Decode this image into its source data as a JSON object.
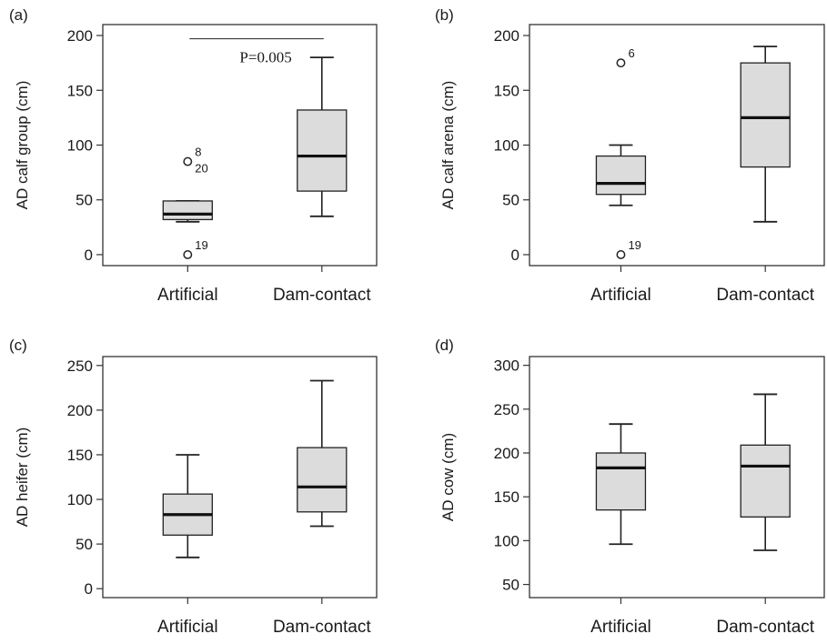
{
  "chart_data": [
    {
      "type": "box",
      "panel_label": "(a)",
      "ylabel": "AD calf group (cm)",
      "categories": [
        "Artificial",
        "Dam-contact"
      ],
      "ylim": [
        -10,
        210
      ],
      "yticks": [
        0,
        50,
        100,
        150,
        200
      ],
      "boxes": [
        {
          "category": "Artificial",
          "whisker_low": 30,
          "q1": 32,
          "median": 37,
          "q3": 49,
          "whisker_high": 49,
          "outliers": [
            {
              "value": 85,
              "labels": [
                "8",
                "20"
              ]
            },
            {
              "value": 0,
              "labels": [
                "19"
              ]
            }
          ]
        },
        {
          "category": "Dam-contact",
          "whisker_low": 35,
          "q1": 58,
          "median": 90,
          "q3": 132,
          "whisker_high": 180,
          "outliers": []
        }
      ],
      "annotation": {
        "text": "P=0.005",
        "y": 197
      }
    },
    {
      "type": "box",
      "panel_label": "(b)",
      "ylabel": "AD calf arena (cm)",
      "categories": [
        "Artificial",
        "Dam-contact"
      ],
      "ylim": [
        -10,
        210
      ],
      "yticks": [
        0,
        50,
        100,
        150,
        200
      ],
      "boxes": [
        {
          "category": "Artificial",
          "whisker_low": 45,
          "q1": 55,
          "median": 65,
          "q3": 90,
          "whisker_high": 100,
          "outliers": [
            {
              "value": 175,
              "labels": [
                "6"
              ]
            },
            {
              "value": 0,
              "labels": [
                "19"
              ]
            }
          ]
        },
        {
          "category": "Dam-contact",
          "whisker_low": 30,
          "q1": 80,
          "median": 125,
          "q3": 175,
          "whisker_high": 190,
          "outliers": []
        }
      ]
    },
    {
      "type": "box",
      "panel_label": "(c)",
      "ylabel": "AD heifer (cm)",
      "categories": [
        "Artificial",
        "Dam-contact"
      ],
      "ylim": [
        -10,
        260
      ],
      "yticks": [
        0,
        50,
        100,
        150,
        200,
        250
      ],
      "boxes": [
        {
          "category": "Artificial",
          "whisker_low": 35,
          "q1": 60,
          "median": 83,
          "q3": 106,
          "whisker_high": 150,
          "outliers": []
        },
        {
          "category": "Dam-contact",
          "whisker_low": 70,
          "q1": 86,
          "median": 114,
          "q3": 158,
          "whisker_high": 233,
          "outliers": []
        }
      ]
    },
    {
      "type": "box",
      "panel_label": "(d)",
      "ylabel": "AD cow (cm)",
      "categories": [
        "Artificial",
        "Dam-contact"
      ],
      "ylim": [
        35,
        310
      ],
      "yticks": [
        50,
        100,
        150,
        200,
        250,
        300
      ],
      "boxes": [
        {
          "category": "Artificial",
          "whisker_low": 96,
          "q1": 135,
          "median": 183,
          "q3": 200,
          "whisker_high": 233,
          "outliers": []
        },
        {
          "category": "Dam-contact",
          "whisker_low": 89,
          "q1": 127,
          "median": 185,
          "q3": 209,
          "whisker_high": 267,
          "outliers": []
        }
      ]
    }
  ],
  "colors": {
    "box_fill": "#dcdcdc",
    "stroke": "#222222",
    "median": "#111111",
    "frame": "#333333"
  }
}
